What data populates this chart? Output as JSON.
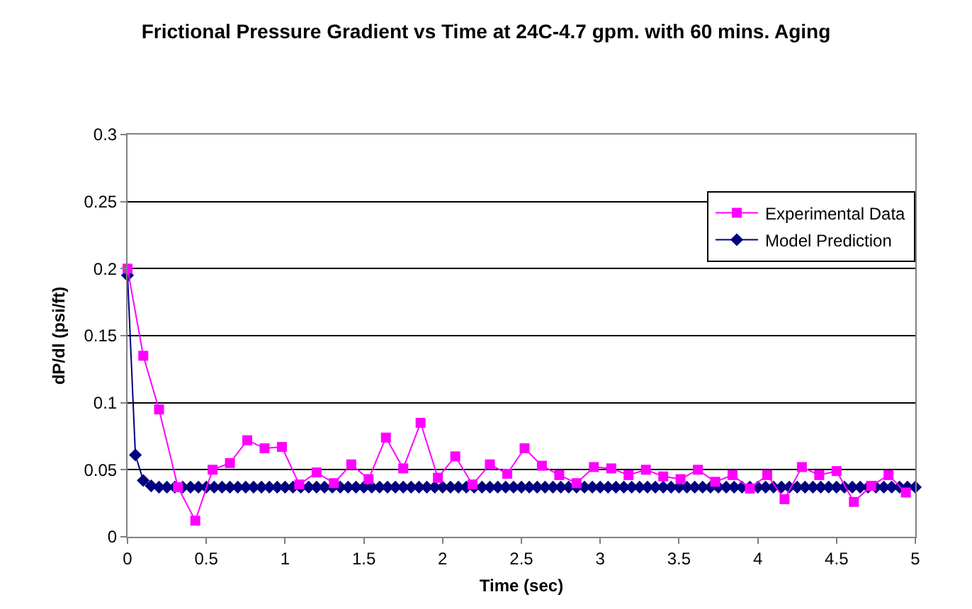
{
  "chart_data": {
    "type": "line",
    "title": "Frictional Pressure Gradient vs Time at 24C-4.7 gpm. with 60 mins. Aging",
    "xlabel": "Time (sec)",
    "ylabel": "dP/dl (psi/ft)",
    "xlim": [
      0,
      5
    ],
    "xticks": [
      0,
      0.5,
      1,
      1.5,
      2,
      2.5,
      3,
      3.5,
      4,
      4.5,
      5
    ],
    "ylim": [
      0,
      0.3
    ],
    "yticks": [
      0,
      0.05,
      0.1,
      0.15,
      0.2,
      0.25,
      0.3
    ],
    "grid": "y",
    "legend": "top right",
    "line_style": "solid",
    "series": [
      {
        "name": "Experimental Data",
        "color": "#ff00ff",
        "marker": "square",
        "x": [
          0,
          0.1,
          0.2,
          0.32,
          0.43,
          0.54,
          0.65,
          0.76,
          0.87,
          0.98,
          1.09,
          1.2,
          1.31,
          1.42,
          1.53,
          1.64,
          1.75,
          1.86,
          1.97,
          2.08,
          2.19,
          2.3,
          2.41,
          2.52,
          2.63,
          2.74,
          2.85,
          2.96,
          3.07,
          3.18,
          3.29,
          3.4,
          3.51,
          3.62,
          3.73,
          3.84,
          3.95,
          4.06,
          4.17,
          4.28,
          4.39,
          4.5,
          4.61,
          4.72,
          4.83,
          4.94
        ],
        "values": [
          0.2,
          0.135,
          0.095,
          0.037,
          0.012,
          0.05,
          0.055,
          0.072,
          0.066,
          0.067,
          0.039,
          0.048,
          0.04,
          0.054,
          0.043,
          0.074,
          0.051,
          0.085,
          0.044,
          0.06,
          0.039,
          0.054,
          0.047,
          0.066,
          0.053,
          0.046,
          0.04,
          0.052,
          0.051,
          0.046,
          0.05,
          0.045,
          0.043,
          0.05,
          0.041,
          0.046,
          0.036,
          0.046,
          0.028,
          0.052,
          0.046,
          0.049,
          0.026,
          0.038,
          0.046,
          0.033
        ]
      },
      {
        "name": "Model Prediction",
        "color": "#000080",
        "marker": "diamond",
        "x": [
          0,
          0.05,
          0.1,
          0.15,
          0.2,
          0.25,
          0.3,
          0.35,
          0.4,
          0.45,
          0.5,
          0.55,
          0.6,
          0.65,
          0.7,
          0.75,
          0.8,
          0.85,
          0.9,
          0.95,
          1,
          1.05,
          1.1,
          1.15,
          1.2,
          1.25,
          1.3,
          1.35,
          1.4,
          1.45,
          1.5,
          1.55,
          1.6,
          1.65,
          1.7,
          1.75,
          1.8,
          1.85,
          1.9,
          1.95,
          2,
          2.05,
          2.1,
          2.15,
          2.2,
          2.25,
          2.3,
          2.35,
          2.4,
          2.45,
          2.5,
          2.55,
          2.6,
          2.65,
          2.7,
          2.75,
          2.8,
          2.85,
          2.9,
          2.95,
          3,
          3.05,
          3.1,
          3.15,
          3.2,
          3.25,
          3.3,
          3.35,
          3.4,
          3.45,
          3.5,
          3.55,
          3.6,
          3.65,
          3.7,
          3.75,
          3.8,
          3.85,
          3.9,
          3.95,
          4,
          4.05,
          4.1,
          4.15,
          4.2,
          4.25,
          4.3,
          4.35,
          4.4,
          4.45,
          4.5,
          4.55,
          4.6,
          4.65,
          4.7,
          4.75,
          4.8,
          4.85,
          4.9,
          4.95,
          5
        ],
        "values": [
          0.195,
          0.061,
          0.042,
          0.038,
          0.037,
          0.037,
          0.037,
          0.037,
          0.037,
          0.037,
          0.037,
          0.037,
          0.037,
          0.037,
          0.037,
          0.037,
          0.037,
          0.037,
          0.037,
          0.037,
          0.037,
          0.037,
          0.037,
          0.037,
          0.037,
          0.037,
          0.037,
          0.037,
          0.037,
          0.037,
          0.037,
          0.037,
          0.037,
          0.037,
          0.037,
          0.037,
          0.037,
          0.037,
          0.037,
          0.037,
          0.037,
          0.037,
          0.037,
          0.037,
          0.037,
          0.037,
          0.037,
          0.037,
          0.037,
          0.037,
          0.037,
          0.037,
          0.037,
          0.037,
          0.037,
          0.037,
          0.037,
          0.037,
          0.037,
          0.037,
          0.037,
          0.037,
          0.037,
          0.037,
          0.037,
          0.037,
          0.037,
          0.037,
          0.037,
          0.037,
          0.037,
          0.037,
          0.037,
          0.037,
          0.037,
          0.037,
          0.037,
          0.037,
          0.037,
          0.037,
          0.037,
          0.037,
          0.037,
          0.037,
          0.037,
          0.037,
          0.037,
          0.037,
          0.037,
          0.037,
          0.037,
          0.037,
          0.037,
          0.037,
          0.037,
          0.037,
          0.037,
          0.037,
          0.037,
          0.037,
          0.037
        ]
      }
    ]
  }
}
